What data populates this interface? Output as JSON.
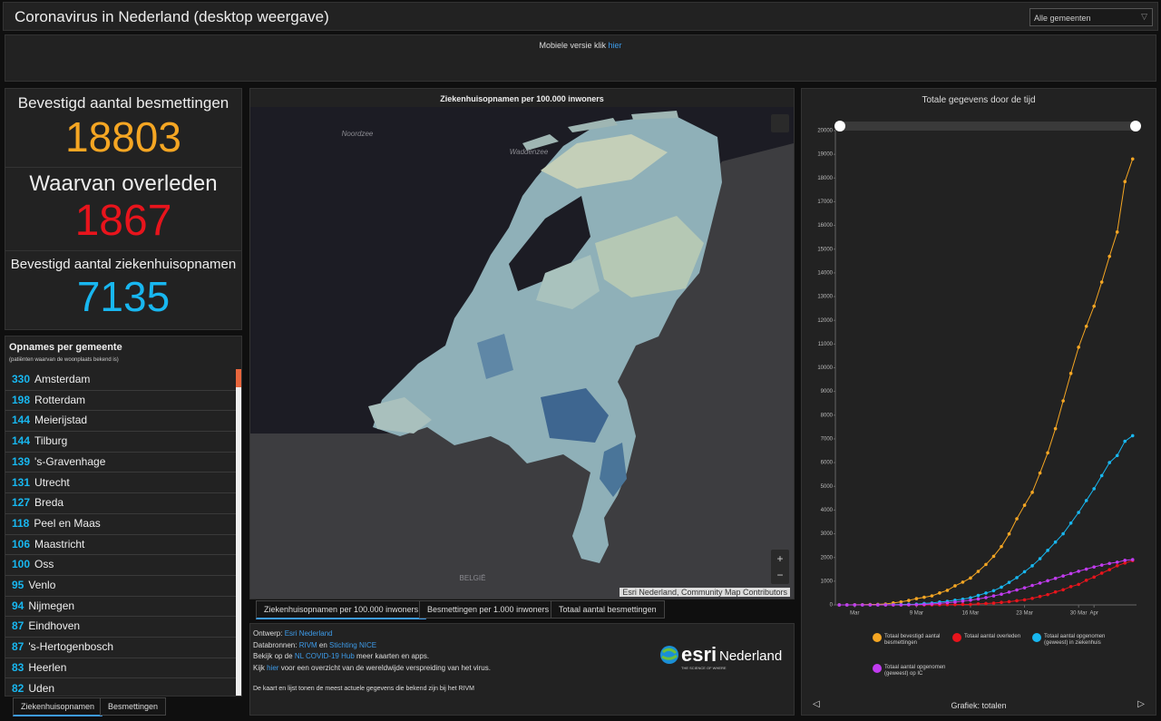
{
  "header": {
    "title": "Coronavirus in Nederland (desktop weergave)",
    "dropdown": "Alle gemeenten"
  },
  "mobile": {
    "text": "Mobiele versie klik",
    "link": "hier"
  },
  "stats": [
    {
      "label": "Bevestigd aantal besmettingen",
      "value": 18803,
      "color": "#f5a623"
    },
    {
      "label": "Waarvan overleden",
      "value": 1867,
      "color": "#e8141c"
    },
    {
      "label": "Bevestigd aantal ziekenhuisopnamen",
      "value": 7135,
      "color": "#18b7f0"
    }
  ],
  "list": {
    "title": "Opnames per gemeente",
    "subtitle": "(patiënten waarvan de woonplaats bekend is)",
    "rows": [
      {
        "count": 330,
        "name": "Amsterdam"
      },
      {
        "count": 198,
        "name": "Rotterdam"
      },
      {
        "count": 144,
        "name": "Meierijstad"
      },
      {
        "count": 144,
        "name": "Tilburg"
      },
      {
        "count": 139,
        "name": "'s-Gravenhage"
      },
      {
        "count": 131,
        "name": "Utrecht"
      },
      {
        "count": 127,
        "name": "Breda"
      },
      {
        "count": 118,
        "name": "Peel en Maas"
      },
      {
        "count": 106,
        "name": "Maastricht"
      },
      {
        "count": 100,
        "name": "Oss"
      },
      {
        "count": 95,
        "name": "Venlo"
      },
      {
        "count": 94,
        "name": "Nijmegen"
      },
      {
        "count": 87,
        "name": "Eindhoven"
      },
      {
        "count": 87,
        "name": "'s-Hertogenbosch"
      },
      {
        "count": 83,
        "name": "Heerlen"
      },
      {
        "count": 82,
        "name": "Uden"
      }
    ],
    "tabs": [
      "Ziekenhuisopnamen",
      "Besmettingen"
    ]
  },
  "map": {
    "title": "Ziekenhuisopnamen per 100.000 inwoners",
    "labels": [
      "Noordzee",
      "Waddenzee",
      "BELGIË"
    ],
    "attribution": "Esri Nederland, Community Map Contributors",
    "tabs": [
      "Ziekenhuisopnamen per 100.000 inwoners",
      "Besmettingen per 1.000 inwoners",
      "Totaal aantal besmettingen"
    ]
  },
  "info": {
    "lines": [
      [
        {
          "text": "Ontwerp: "
        },
        {
          "text": "Esri Nederland",
          "link": true
        }
      ],
      [
        {
          "text": "Databronnen: "
        },
        {
          "text": "RIVM",
          "link": true
        },
        {
          "text": " en "
        },
        {
          "text": "Stichting NICE",
          "link": true
        }
      ],
      [
        {
          "text": "Bekijk op de "
        },
        {
          "text": "NL COVID-19 Hub",
          "link": true
        },
        {
          "text": " meer kaarten en apps."
        }
      ],
      [
        {
          "text": "Kijk "
        },
        {
          "text": "hier",
          "link": true
        },
        {
          "text": " voor een overzicht van de wereldwijde verspreiding van het virus."
        }
      ]
    ],
    "note": "De kaart en lijst tonen de meest actuele gegevens die bekend zijn bij het RIVM"
  },
  "logo": {
    "brand": "esri",
    "name": "Nederland",
    "tagline": "THE SCIENCE OF WHERE"
  },
  "chart_data": {
    "type": "line",
    "title": "Totale gegevens door de tijd",
    "footer": "Grafiek: totalen",
    "x": [
      -1,
      0,
      1,
      2,
      3,
      4,
      5,
      6,
      7,
      8,
      9,
      10,
      11,
      12,
      13,
      14,
      15,
      16,
      17,
      18,
      19,
      20,
      21,
      22,
      23,
      24,
      25,
      26,
      27,
      28,
      29,
      30,
      31,
      32,
      33,
      34,
      35,
      36,
      37
    ],
    "xlim": [
      -1.5,
      37.5
    ],
    "xticks": [
      {
        "value": 1,
        "label": "Mar"
      },
      {
        "value": 9,
        "label": "9 Mar"
      },
      {
        "value": 16,
        "label": "16 Mar"
      },
      {
        "value": 23,
        "label": "23 Mar"
      },
      {
        "value": 30,
        "label": "30 Mar"
      },
      {
        "value": 32,
        "label": "Apr"
      }
    ],
    "ylim": [
      0,
      20000
    ],
    "yticks": [
      0,
      1000,
      2000,
      3000,
      4000,
      5000,
      6000,
      7000,
      8000,
      9000,
      10000,
      11000,
      12000,
      13000,
      14000,
      15000,
      16000,
      17000,
      18000,
      19000,
      20000
    ],
    "grid": false,
    "series": [
      {
        "name": "Totaal bevestigd aantal besmettingen",
        "color": "#f5a623",
        "values": [
          1,
          2,
          6,
          10,
          18,
          24,
          38,
          82,
          128,
          188,
          265,
          321,
          382,
          503,
          614,
          804,
          959,
          1135,
          1413,
          1705,
          2051,
          2460,
          2994,
          3631,
          4204,
          4749,
          5560,
          6412,
          7431,
          8603,
          9762,
          10866,
          11750,
          12595,
          13614,
          14697,
          15723,
          17851,
          18803
        ]
      },
      {
        "name": "Totaal aantal overleden",
        "color": "#e8141c",
        "values": [
          0,
          0,
          0,
          0,
          0,
          0,
          0,
          1,
          1,
          3,
          3,
          3,
          4,
          5,
          10,
          12,
          20,
          24,
          43,
          58,
          76,
          106,
          136,
          179,
          213,
          276,
          356,
          434,
          546,
          639,
          771,
          864,
          1039,
          1173,
          1339,
          1487,
          1651,
          1766,
          1867
        ]
      },
      {
        "name": "Totaal aantal opgenomen (geweest) in ziekenhuis",
        "color": "#18b7f0",
        "values": [
          0,
          0,
          0,
          0,
          0,
          2,
          4,
          10,
          18,
          25,
          30,
          60,
          80,
          120,
          150,
          200,
          240,
          300,
          400,
          500,
          600,
          750,
          950,
          1150,
          1400,
          1650,
          1950,
          2300,
          2650,
          3000,
          3450,
          3900,
          4400,
          4900,
          5450,
          6000,
          6300,
          6900,
          7135
        ]
      },
      {
        "name": "Totaal aantal opgenomen (geweest) op IC",
        "color": "#c13bf0",
        "values": [
          0,
          0,
          0,
          0,
          0,
          0,
          0,
          0,
          2,
          5,
          10,
          20,
          40,
          60,
          90,
          120,
          160,
          200,
          250,
          310,
          380,
          450,
          540,
          630,
          720,
          820,
          920,
          1020,
          1120,
          1220,
          1320,
          1420,
          1510,
          1600,
          1680,
          1750,
          1800,
          1880,
          1910
        ]
      }
    ]
  }
}
